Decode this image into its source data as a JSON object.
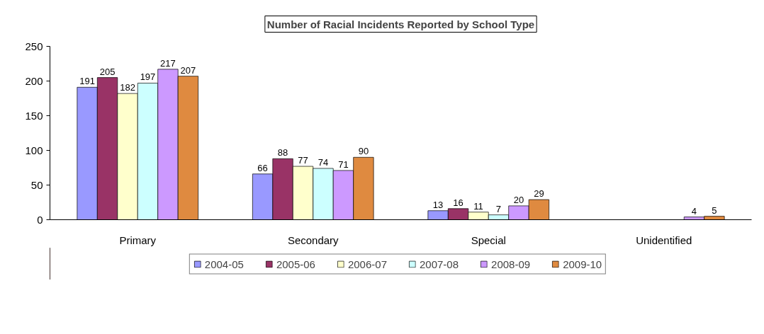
{
  "chart_data": {
    "type": "bar",
    "title": "Number of Racial Incidents Reported by School Type",
    "categories": [
      "Primary",
      "Secondary",
      "Special",
      "Unidentified"
    ],
    "series": [
      {
        "name": "2004-05",
        "color": "#9999ff",
        "values": [
          191,
          66,
          13,
          null
        ]
      },
      {
        "name": "2005-06",
        "color": "#993366",
        "values": [
          205,
          88,
          16,
          null
        ]
      },
      {
        "name": "2006-07",
        "color": "#ffffcc",
        "values": [
          182,
          77,
          11,
          null
        ]
      },
      {
        "name": "2007-08",
        "color": "#ccffff",
        "values": [
          197,
          74,
          7,
          null
        ]
      },
      {
        "name": "2008-09",
        "color": "#cc99ff",
        "values": [
          217,
          71,
          20,
          4
        ]
      },
      {
        "name": "2009-10",
        "color": "#df8a40",
        "values": [
          207,
          90,
          29,
          5
        ]
      }
    ],
    "ylim": [
      0,
      250
    ],
    "yticks": [
      0,
      50,
      100,
      150,
      200,
      250
    ],
    "grid": false,
    "legend": "bottom",
    "data_labels": true
  }
}
